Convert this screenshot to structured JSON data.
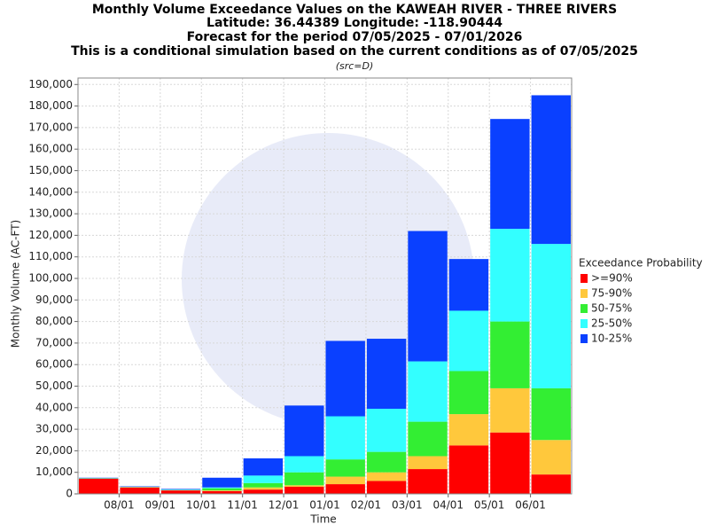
{
  "chart_data": {
    "type": "stacked_bar",
    "title": [
      "Monthly Volume Exceedance Values on the KAWEAH RIVER - THREE RIVERS",
      "Latitude: 36.44389 Longitude: -118.90444",
      "Forecast for the period 07/05/2025 - 07/01/2026",
      "This is a conditional simulation based on the current conditions as of 07/05/2025"
    ],
    "subtitle": "(src=D)",
    "x_label": "Time",
    "y_label": "Monthly Volume (AC-FT)",
    "legend_title": "Exceedance Probability",
    "legend": "right",
    "grid": true,
    "categories": [
      null,
      "08/01",
      "09/01",
      "10/01",
      "11/01",
      "12/01",
      "01/01",
      "02/01",
      "03/01",
      "04/01",
      "05/01",
      "06/01"
    ],
    "series": [
      {
        "name": ">=90%",
        "color": "#ff0000",
        "values": [
          7000,
          3000,
          1600,
          1300,
          2000,
          3300,
          4500,
          6000,
          11500,
          22500,
          28500,
          9000
        ]
      },
      {
        "name": "75-90%",
        "color": "#ffc83c",
        "values": [
          100,
          100,
          100,
          300,
          1000,
          700,
          3500,
          4000,
          6000,
          14500,
          20500,
          16000
        ]
      },
      {
        "name": "50-75%",
        "color": "#33ee33",
        "values": [
          100,
          100,
          100,
          1000,
          2000,
          6000,
          8000,
          9500,
          16000,
          20000,
          31000,
          24000
        ]
      },
      {
        "name": "25-50%",
        "color": "#33ffff",
        "values": [
          100,
          100,
          200,
          400,
          3500,
          7500,
          20000,
          20000,
          28000,
          28000,
          43000,
          67000
        ]
      },
      {
        "name": "10-25%",
        "color": "#0a40ff",
        "values": [
          200,
          200,
          300,
          4500,
          8000,
          23500,
          35000,
          32500,
          60500,
          24000,
          51000,
          69000
        ]
      }
    ],
    "ylim": [
      0,
      193000
    ],
    "yticks": [
      0,
      {
        "value": 10000,
        "label": "10,000"
      },
      {
        "value": 20000,
        "label": "20,000"
      },
      {
        "value": 30000,
        "label": "30,000"
      },
      {
        "value": 40000,
        "label": "40,000"
      },
      {
        "value": 50000,
        "label": "50,000"
      },
      {
        "value": 60000,
        "label": "60,000"
      },
      {
        "value": 70000,
        "label": "70,000"
      },
      {
        "value": 80000,
        "label": "80,000"
      },
      {
        "value": 90000,
        "label": "90,000"
      },
      {
        "value": 100000,
        "label": "100,000"
      },
      {
        "value": 110000,
        "label": "110,000"
      },
      {
        "value": 120000,
        "label": "120,000"
      },
      {
        "value": 130000,
        "label": "130,000"
      },
      {
        "value": 140000,
        "label": "140,000"
      },
      {
        "value": 150000,
        "label": "150,000"
      },
      {
        "value": 160000,
        "label": "160,000"
      },
      {
        "value": 170000,
        "label": "170,000"
      },
      {
        "value": 180000,
        "label": "180,000"
      },
      {
        "value": 190000,
        "label": "190,000"
      }
    ]
  }
}
